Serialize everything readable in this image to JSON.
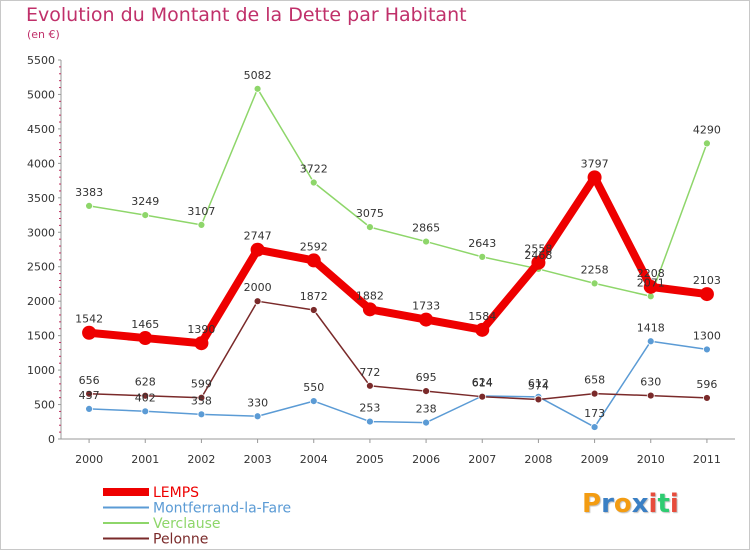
{
  "chart_data": {
    "type": "line",
    "title": "Evolution du Montant de la Dette par Habitant",
    "subtitle": "(en €)",
    "categories": [
      "2000",
      "2001",
      "2002",
      "2003",
      "2004",
      "2005",
      "2006",
      "2007",
      "2008",
      "2009",
      "2010",
      "2011"
    ],
    "ylim": [
      0,
      5500
    ],
    "yticks": [
      0,
      500,
      1000,
      1500,
      2000,
      2500,
      3000,
      3500,
      4000,
      4500,
      5000,
      5500
    ],
    "grid": false,
    "legend_position": "bottom-left",
    "series": [
      {
        "name": "LEMPS",
        "color": "#ee0000",
        "values": [
          1542,
          1465,
          1390,
          2747,
          2592,
          1882,
          1733,
          1584,
          2558,
          3797,
          2208,
          2103
        ]
      },
      {
        "name": "Montferrand-la-Fare",
        "color": "#5b9bd5",
        "values": [
          437,
          402,
          358,
          330,
          550,
          253,
          238,
          624,
          612,
          173,
          1418,
          1300
        ]
      },
      {
        "name": "Verclause",
        "color": "#8ed66a",
        "values": [
          3383,
          3249,
          3107,
          5082,
          3722,
          3075,
          2865,
          2643,
          2468,
          2258,
          2071,
          4290
        ]
      },
      {
        "name": "Pelonne",
        "color": "#7a2a2a",
        "values": [
          656,
          628,
          599,
          2000,
          1872,
          772,
          695,
          614,
          574,
          658,
          630,
          596
        ]
      }
    ]
  },
  "logo": {
    "letters": [
      "P",
      "r",
      "o",
      "x",
      "i",
      "t",
      "i"
    ],
    "colors": [
      "#f39c12",
      "#3a7fc4",
      "#f39c12",
      "#3a7fc4",
      "#e74c3c",
      "#2ecc71",
      "#e74c3c"
    ]
  }
}
